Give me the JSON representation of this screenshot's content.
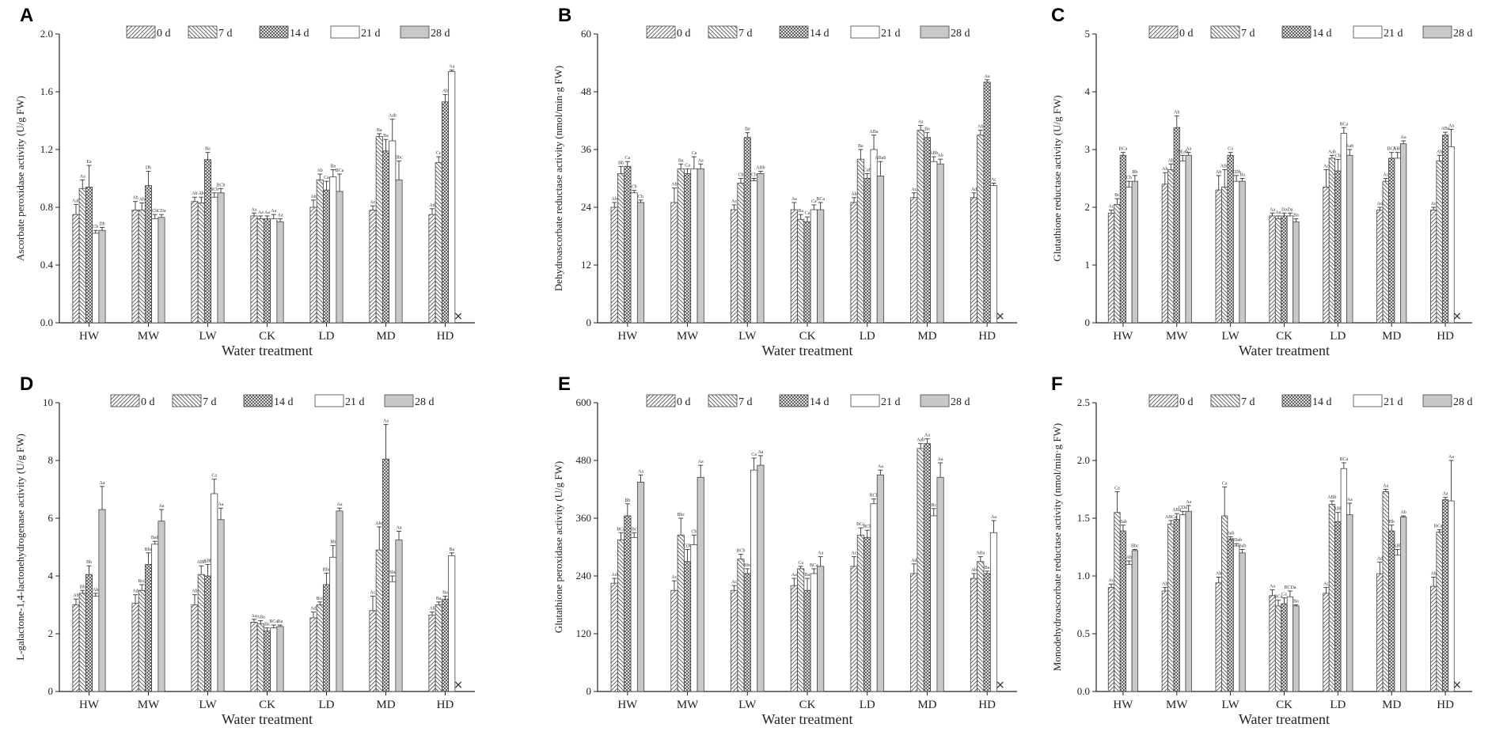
{
  "figure": {
    "x_label": "Water treatment",
    "missing_marker": "×"
  },
  "colors": {
    "axis": "#222222",
    "bar_stroke": "#444444",
    "hatch": "#555555",
    "bar28": "#c8c8c8",
    "bar21": "#ffffff"
  },
  "chart_data": [
    {
      "panel": "A",
      "type": "bar",
      "ylabel": "Ascorbate peroxidase activity (U/g FW)",
      "xlabel": "Water treatment",
      "ylim": [
        0,
        2.0
      ],
      "yticks": [
        "0.0",
        "0.4",
        "0.8",
        "1.2",
        "1.6",
        "2.0"
      ],
      "categories": [
        "HW",
        "MW",
        "LW",
        "CK",
        "LD",
        "MD",
        "HD"
      ],
      "series": [
        {
          "name": "0 d",
          "values": [
            0.75,
            0.78,
            0.84,
            0.74,
            0.8,
            0.78,
            0.75
          ],
          "errors": [
            0.07,
            0.06,
            0.03,
            0.02,
            0.05,
            0.03,
            0.04
          ],
          "letters": [
            "Aab",
            "Ab",
            "Ab",
            "Aa",
            "Ab",
            "Ac",
            "Ad"
          ]
        },
        {
          "name": "7 d",
          "values": [
            0.93,
            0.78,
            0.83,
            0.72,
            0.99,
            1.29,
            1.11
          ],
          "errors": [
            0.06,
            0.05,
            0.04,
            0.02,
            0.04,
            0.02,
            0.04
          ],
          "letters": [
            "Aa",
            "Ab",
            "Ab",
            "Aa",
            "Ab",
            "Ba",
            "Cc"
          ]
        },
        {
          "name": "14 d",
          "values": [
            0.94,
            0.95,
            1.13,
            0.72,
            0.92,
            1.19,
            1.53
          ],
          "errors": [
            0.15,
            0.1,
            0.05,
            0.02,
            0.06,
            0.08,
            0.05
          ],
          "letters": [
            "Ea",
            "Db",
            "Ba",
            "Aa",
            "Ca",
            "Ba",
            "Ab"
          ]
        },
        {
          "name": "21 d",
          "values": [
            0.62,
            0.72,
            0.87,
            0.72,
            1.01,
            1.26,
            1.74
          ],
          "errors": [
            0.02,
            0.03,
            0.03,
            0.03,
            0.05,
            0.15,
            0.01
          ],
          "letters": [
            "Cb",
            "Cb",
            "BCb",
            "Aa",
            "Ba",
            "Aab",
            "Aa"
          ]
        },
        {
          "name": "28 d",
          "values": [
            0.64,
            0.73,
            0.9,
            0.7,
            0.91,
            0.99,
            null
          ],
          "errors": [
            0.02,
            0.02,
            0.03,
            0.02,
            0.12,
            0.13,
            null
          ],
          "letters": [
            "Db",
            "CDa",
            "BCb",
            "Aa",
            "BCa",
            "Bbc",
            ""
          ]
        }
      ]
    },
    {
      "panel": "B",
      "type": "bar",
      "ylabel": "Dehydroascorbate reductase activity (nmol/min·g FW)",
      "xlabel": "Water treatment",
      "ylim": [
        0,
        60
      ],
      "yticks": [
        "0",
        "12",
        "24",
        "36",
        "48",
        "60"
      ],
      "categories": [
        "HW",
        "MW",
        "LW",
        "CK",
        "LD",
        "MD",
        "HD"
      ],
      "series": [
        {
          "name": "0 d",
          "values": [
            24,
            25,
            23.5,
            23.5,
            25,
            26,
            26
          ],
          "errors": [
            1,
            3,
            1,
            1.5,
            1,
            1,
            1
          ],
          "letters": [
            "Ab",
            "Ab",
            "Ac",
            "Aa",
            "Ab",
            "Ac",
            "Ad"
          ]
        },
        {
          "name": "7 d",
          "values": [
            31,
            32,
            29,
            21.5,
            34,
            40,
            39
          ],
          "errors": [
            1.5,
            1,
            1,
            1,
            2,
            1,
            1
          ],
          "letters": [
            "Bb",
            "Ba",
            "Cb",
            "Ba",
            "Ba",
            "Aa",
            "Ab"
          ]
        },
        {
          "name": "14 d",
          "values": [
            32.5,
            31,
            38.5,
            21,
            30,
            38.5,
            50
          ],
          "errors": [
            1,
            1,
            1,
            1,
            1,
            1,
            0.5
          ],
          "letters": [
            "Ca",
            "Ca",
            "Ba",
            "Ca",
            "Cab",
            "Ba",
            "Aa"
          ]
        },
        {
          "name": "21 d",
          "values": [
            27,
            32,
            29.5,
            23.5,
            36,
            33.5,
            28.5
          ],
          "errors": [
            0.5,
            2.5,
            0.5,
            1,
            3,
            1,
            0.5
          ],
          "letters": [
            "Cb",
            "Ca",
            "Cb",
            "Ca",
            "ABa",
            "ABb",
            "Ac"
          ]
        },
        {
          "name": "28 d",
          "values": [
            25,
            32,
            31,
            23.5,
            30.5,
            33,
            null
          ],
          "errors": [
            0.5,
            1,
            0.5,
            1.5,
            3,
            1,
            null
          ],
          "letters": [
            "Cb",
            "Aa",
            "ABb",
            "BCa",
            "ABab",
            "Ab",
            ""
          ]
        }
      ]
    },
    {
      "panel": "C",
      "type": "bar",
      "ylabel": "Glutathione reductase activity (U/g FW)",
      "xlabel": "Water treatment",
      "ylim": [
        0,
        5
      ],
      "yticks": [
        "0",
        "1",
        "2",
        "3",
        "4",
        "5"
      ],
      "categories": [
        "HW",
        "MW",
        "LW",
        "CK",
        "LD",
        "MD",
        "HD"
      ],
      "series": [
        {
          "name": "0 d",
          "values": [
            1.9,
            2.4,
            2.3,
            1.85,
            2.35,
            1.95,
            1.95
          ],
          "errors": [
            0.05,
            0.2,
            0.25,
            0.05,
            0.3,
            0.05,
            0.05
          ],
          "letters": [
            "Ac",
            "Ab",
            "Ab",
            "Aa",
            "Ac",
            "Ad",
            "Ac"
          ]
        },
        {
          "name": "7 d",
          "values": [
            2.05,
            2.65,
            2.35,
            1.8,
            2.85,
            2.45,
            2.8
          ],
          "errors": [
            0.1,
            0.1,
            0.3,
            0.05,
            0.05,
            0.05,
            0.1
          ],
          "letters": [
            "Bc",
            "Ab",
            "ABc",
            "Aa",
            "Aab",
            "Ac",
            "Ab"
          ]
        },
        {
          "name": "14 d",
          "values": [
            2.9,
            3.38,
            2.9,
            1.85,
            2.63,
            2.85,
            3.25
          ],
          "errors": [
            0.05,
            0.2,
            0.05,
            0.05,
            0.2,
            0.1,
            0.05
          ],
          "letters": [
            "BCa",
            "Ab",
            "Ca",
            "Da",
            "Cb",
            "BCb",
            "ABa"
          ]
        },
        {
          "name": "21 d",
          "values": [
            2.35,
            2.8,
            2.45,
            1.85,
            3.28,
            2.85,
            3.05
          ],
          "errors": [
            0.1,
            0.1,
            0.1,
            0.05,
            0.1,
            0.1,
            0.3
          ],
          "letters": [
            "Cb",
            "DEab",
            "CDb",
            "Da",
            "BCa",
            "ABb",
            "Aa"
          ]
        },
        {
          "name": "28 d",
          "values": [
            2.45,
            2.9,
            2.45,
            1.75,
            2.9,
            3.1,
            null
          ],
          "errors": [
            0.1,
            0.05,
            0.05,
            0.05,
            0.1,
            0.05,
            null
          ],
          "letters": [
            "Bb",
            "Aa",
            "Ba",
            "Ba",
            "Aab",
            "Aa",
            ""
          ]
        }
      ]
    },
    {
      "panel": "D",
      "type": "bar",
      "ylabel": "L-galactone-1,4-lactonehydrogenase activity (U/g FW)",
      "xlabel": "Water treatment",
      "ylim": [
        0,
        10
      ],
      "yticks": [
        "0",
        "2",
        "4",
        "6",
        "8",
        "10"
      ],
      "categories": [
        "HW",
        "MW",
        "LW",
        "CK",
        "LD",
        "MD",
        "HD"
      ],
      "series": [
        {
          "name": "0 d",
          "values": [
            3.0,
            3.05,
            3.0,
            2.4,
            2.55,
            2.8,
            2.65
          ],
          "errors": [
            0.2,
            0.3,
            0.35,
            0.1,
            0.2,
            0.5,
            0.1
          ],
          "letters": [
            "Ab",
            "Ad",
            "Ab",
            "Aa",
            "Ad",
            "Ac",
            "Ab"
          ]
        },
        {
          "name": "7 d",
          "values": [
            3.4,
            3.5,
            4.05,
            2.35,
            3.0,
            4.9,
            3.0
          ],
          "errors": [
            0.1,
            0.2,
            0.3,
            0.1,
            0.1,
            0.8,
            0.1
          ],
          "letters": [
            "Bb",
            "Bcd",
            "ABb",
            "ABa",
            "Bcd",
            "Abc",
            "Ba"
          ]
        },
        {
          "name": "14 d",
          "values": [
            4.05,
            4.4,
            4.0,
            2.1,
            3.7,
            8.05,
            3.2
          ],
          "errors": [
            0.3,
            0.4,
            0.4,
            0.1,
            0.4,
            1.2,
            0.1
          ],
          "letters": [
            "Bb",
            "Bbc",
            "ABb",
            "Ba",
            "Bbc",
            "Aa",
            "Ba"
          ]
        },
        {
          "name": "21 d",
          "values": [
            3.3,
            5.1,
            6.85,
            2.2,
            4.65,
            3.8,
            4.7
          ],
          "errors": [
            0.1,
            0.1,
            0.5,
            0.1,
            0.4,
            0.2,
            0.1
          ],
          "letters": [
            "Ab",
            "Bab",
            "Ca",
            "BCa",
            "Bb",
            "Bbc",
            "Ba"
          ]
        },
        {
          "name": "28 d",
          "values": [
            6.3,
            5.9,
            5.95,
            2.25,
            6.25,
            5.25,
            null
          ],
          "errors": [
            0.8,
            0.4,
            0.4,
            0.05,
            0.1,
            0.3,
            null
          ],
          "letters": [
            "Aa",
            "Aa",
            "Aa",
            "Ba",
            "Aa",
            "Aa",
            ""
          ]
        }
      ]
    },
    {
      "panel": "E",
      "type": "bar",
      "ylabel": "Glutathione peroxidase activity (U/g FW)",
      "xlabel": "Water treatment",
      "ylim": [
        0,
        600
      ],
      "yticks": [
        "0",
        "120",
        "240",
        "360",
        "480",
        "600"
      ],
      "categories": [
        "HW",
        "MW",
        "LW",
        "CK",
        "LD",
        "MD",
        "HD"
      ],
      "series": [
        {
          "name": "0 d",
          "values": [
            225,
            210,
            210,
            220,
            260,
            245,
            235
          ],
          "errors": [
            10,
            20,
            10,
            15,
            20,
            20,
            10
          ],
          "letters": [
            "Ad",
            "Ac",
            "Ac",
            "Aa",
            "Ac",
            "Ad",
            "Ab"
          ]
        },
        {
          "name": "7 d",
          "values": [
            315,
            325,
            275,
            255,
            325,
            505,
            270
          ],
          "errors": [
            15,
            35,
            10,
            5,
            15,
            10,
            10
          ],
          "letters": [
            "BCc",
            "Bbc",
            "BCb",
            "Ca",
            "BCc",
            "Aab",
            "ABa"
          ]
        },
        {
          "name": "14 d",
          "values": [
            365,
            270,
            245,
            210,
            320,
            515,
            245
          ],
          "errors": [
            25,
            25,
            10,
            25,
            15,
            10,
            5
          ],
          "letters": [
            "Bb",
            "CDb",
            "Bbc",
            "Ba",
            "BCb",
            "Aa",
            "Ba"
          ]
        },
        {
          "name": "21 d",
          "values": [
            320,
            305,
            460,
            245,
            390,
            365,
            330
          ],
          "errors": [
            10,
            20,
            25,
            10,
            10,
            15,
            25
          ],
          "letters": [
            "Bc",
            "Cb",
            "Ca",
            "BCa",
            "BCb",
            "Bc",
            "Aa"
          ]
        },
        {
          "name": "28 d",
          "values": [
            435,
            445,
            470,
            260,
            450,
            445,
            null
          ],
          "errors": [
            15,
            25,
            20,
            20,
            10,
            30,
            null
          ],
          "letters": [
            "Aa",
            "Aa",
            "Aa",
            "Aa",
            "Aa",
            "Aa",
            ""
          ]
        }
      ]
    },
    {
      "panel": "F",
      "type": "bar",
      "ylabel": "Monodehydroascorbate reductase activity (nmol/min·g FW)",
      "xlabel": "Water treatment",
      "ylim": [
        0,
        2.5
      ],
      "yticks": [
        "0.0",
        "0.5",
        "1.0",
        "1.5",
        "2.0",
        "2.5"
      ],
      "categories": [
        "HW",
        "MW",
        "LW",
        "CK",
        "LD",
        "MD",
        "HD"
      ],
      "series": [
        {
          "name": "0 d",
          "values": [
            0.9,
            0.87,
            0.94,
            0.83,
            0.85,
            1.02,
            0.91
          ],
          "errors": [
            0.03,
            0.03,
            0.05,
            0.05,
            0.05,
            0.1,
            0.08
          ],
          "letters": [
            "Ac",
            "Ab",
            "Ab",
            "Aa",
            "Ac",
            "Ad",
            "Ab"
          ]
        },
        {
          "name": "7 d",
          "values": [
            1.55,
            1.45,
            1.52,
            0.74,
            1.62,
            1.73,
            1.38
          ],
          "errors": [
            0.18,
            0.03,
            0.25,
            0.05,
            0.03,
            0.02,
            0.02
          ],
          "letters": [
            "Ca",
            "ABCa",
            "Ca",
            "BCa",
            "ABb",
            "Aa",
            "BCab"
          ]
        },
        {
          "name": "14 d",
          "values": [
            1.39,
            1.49,
            1.32,
            0.76,
            1.47,
            1.39,
            1.66
          ],
          "errors": [
            0.05,
            0.05,
            0.02,
            0.05,
            0.08,
            0.05,
            0.02
          ],
          "letters": [
            "Bab",
            "ABa",
            "Bab",
            "Ca",
            "ABb",
            "Bb",
            "Aa"
          ]
        },
        {
          "name": "21 d",
          "values": [
            1.1,
            1.53,
            1.26,
            0.82,
            1.93,
            1.18,
            1.65
          ],
          "errors": [
            0.03,
            0.03,
            0.02,
            0.05,
            0.05,
            0.05,
            0.35
          ],
          "letters": [
            "Ab",
            "CDa",
            "CDab",
            "BCDa",
            "BCa",
            "ABb",
            "Aa"
          ]
        },
        {
          "name": "28 d",
          "values": [
            1.22,
            1.56,
            1.2,
            0.74,
            1.53,
            1.51,
            null
          ],
          "errors": [
            0.01,
            0.05,
            0.03,
            0.01,
            0.1,
            0.01,
            null
          ],
          "letters": [
            "Bbc",
            "Aa",
            "Bab",
            "Ba",
            "Aa",
            "Ab",
            ""
          ]
        }
      ]
    }
  ]
}
